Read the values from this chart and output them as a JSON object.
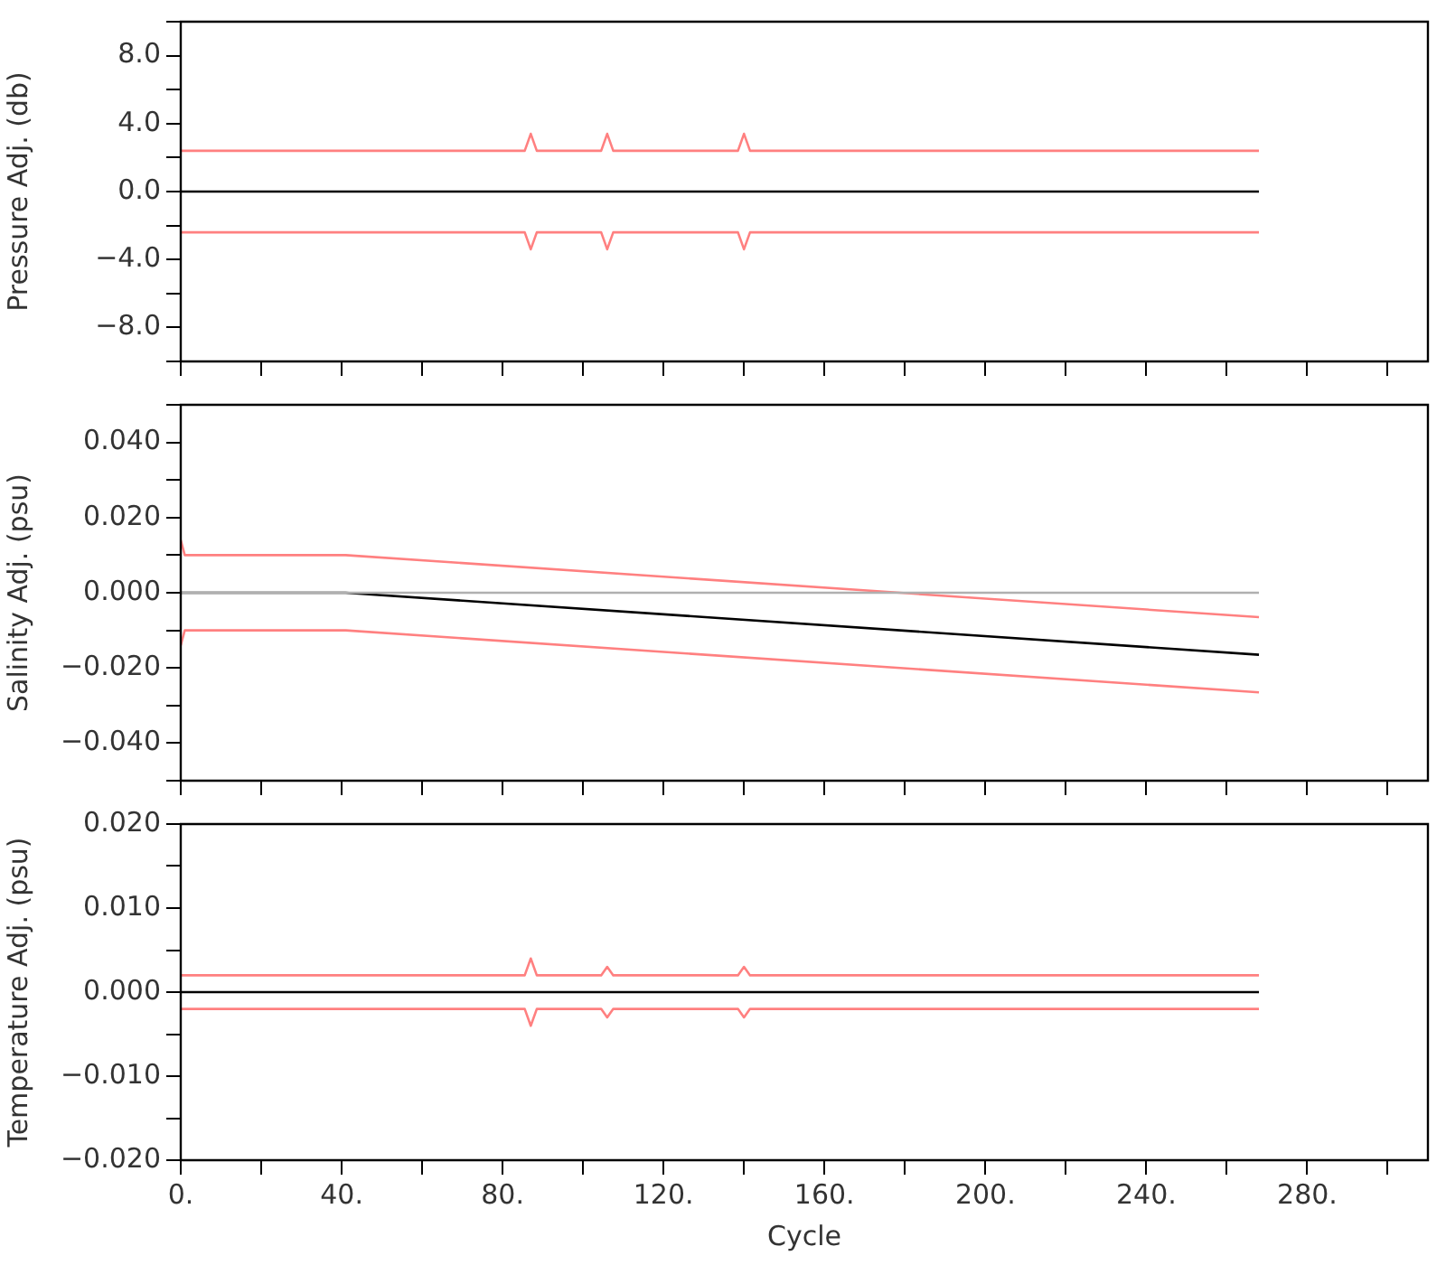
{
  "chart_data": [
    {
      "type": "line",
      "ylabel": "Pressure Adj. (db)",
      "xlim": [
        0,
        310
      ],
      "ylim": [
        -10,
        10
      ],
      "tick_labels": "y",
      "legend": false,
      "marker": "none",
      "line_style": "solid",
      "grid": false,
      "xticks": [
        {
          "value": 0,
          "label": null
        },
        {
          "value": 20,
          "label": null
        },
        {
          "value": 40,
          "label": null
        },
        {
          "value": 60,
          "label": null
        },
        {
          "value": 80,
          "label": null
        },
        {
          "value": 100,
          "label": null
        },
        {
          "value": 120,
          "label": null
        },
        {
          "value": 140,
          "label": null
        },
        {
          "value": 160,
          "label": null
        },
        {
          "value": 180,
          "label": null
        },
        {
          "value": 200,
          "label": null
        },
        {
          "value": 220,
          "label": null
        },
        {
          "value": 240,
          "label": null
        },
        {
          "value": 260,
          "label": null
        },
        {
          "value": 280,
          "label": null
        },
        {
          "value": 300,
          "label": null
        }
      ],
      "yticks": [
        {
          "value": -10,
          "label": null
        },
        {
          "value": -8,
          "label": "−8.0"
        },
        {
          "value": -6,
          "label": null
        },
        {
          "value": -4,
          "label": "−4.0"
        },
        {
          "value": -2,
          "label": null
        },
        {
          "value": 0,
          "label": "0.0"
        },
        {
          "value": 2,
          "label": null
        },
        {
          "value": 4,
          "label": "4.0"
        },
        {
          "value": 6,
          "label": null
        },
        {
          "value": 8,
          "label": "8.0"
        },
        {
          "value": 10,
          "label": null
        }
      ],
      "series": [
        {
          "color": "#ff8080",
          "x": [
            0,
            85.5,
            87,
            88.5,
            104.5,
            106,
            107.5,
            138.5,
            140,
            141.5,
            268
          ],
          "values": [
            2.4,
            2.4,
            3.4,
            2.4,
            2.4,
            3.4,
            2.4,
            2.4,
            3.4,
            2.4,
            2.4
          ]
        },
        {
          "color": "#ff8080",
          "x": [
            0,
            85.5,
            87,
            88.5,
            104.5,
            106,
            107.5,
            138.5,
            140,
            141.5,
            268
          ],
          "values": [
            -2.4,
            -2.4,
            -3.4,
            -2.4,
            -2.4,
            -3.4,
            -2.4,
            -2.4,
            -3.4,
            -2.4,
            -2.4
          ]
        },
        {
          "color": "#000000",
          "x": [
            0,
            268
          ],
          "values": [
            0,
            0
          ]
        }
      ]
    },
    {
      "type": "line",
      "ylabel": "Salinity Adj. (psu)",
      "xlim": [
        0,
        310
      ],
      "ylim": [
        -0.05,
        0.05
      ],
      "tick_labels": "y",
      "legend": false,
      "marker": "none",
      "line_style": "solid",
      "grid": false,
      "xticks": [
        {
          "value": 0,
          "label": null
        },
        {
          "value": 20,
          "label": null
        },
        {
          "value": 40,
          "label": null
        },
        {
          "value": 60,
          "label": null
        },
        {
          "value": 80,
          "label": null
        },
        {
          "value": 100,
          "label": null
        },
        {
          "value": 120,
          "label": null
        },
        {
          "value": 140,
          "label": null
        },
        {
          "value": 160,
          "label": null
        },
        {
          "value": 180,
          "label": null
        },
        {
          "value": 200,
          "label": null
        },
        {
          "value": 220,
          "label": null
        },
        {
          "value": 240,
          "label": null
        },
        {
          "value": 260,
          "label": null
        },
        {
          "value": 280,
          "label": null
        },
        {
          "value": 300,
          "label": null
        }
      ],
      "yticks": [
        {
          "value": -0.05,
          "label": null
        },
        {
          "value": -0.04,
          "label": "−0.040"
        },
        {
          "value": -0.03,
          "label": null
        },
        {
          "value": -0.02,
          "label": "−0.020"
        },
        {
          "value": -0.01,
          "label": null
        },
        {
          "value": 0,
          "label": "0.000"
        },
        {
          "value": 0.01,
          "label": null
        },
        {
          "value": 0.02,
          "label": "0.020"
        },
        {
          "value": 0.03,
          "label": null
        },
        {
          "value": 0.04,
          "label": "0.040"
        },
        {
          "value": 0.05,
          "label": null
        }
      ],
      "series": [
        {
          "color": "#b0b0b0",
          "x": [
            0,
            268
          ],
          "values": [
            0,
            0
          ]
        },
        {
          "color": "#ff8080",
          "x": [
            0,
            1,
            41,
            268
          ],
          "values": [
            0.014,
            0.01,
            0.01,
            -0.0065
          ]
        },
        {
          "color": "#ff8080",
          "x": [
            0,
            1,
            41,
            268
          ],
          "values": [
            -0.014,
            -0.01,
            -0.01,
            -0.0265
          ]
        },
        {
          "color": "#000000",
          "x": [
            0,
            41,
            268
          ],
          "values": [
            0,
            0,
            -0.0165
          ]
        }
      ]
    },
    {
      "type": "line",
      "ylabel": "Temperature Adj. (psu)",
      "xlabel": "Cycle",
      "xlim": [
        0,
        310
      ],
      "ylim": [
        -0.02,
        0.02
      ],
      "legend": false,
      "marker": "none",
      "line_style": "solid",
      "grid": false,
      "xticks": [
        {
          "value": 0,
          "label": "0."
        },
        {
          "value": 20,
          "label": null
        },
        {
          "value": 40,
          "label": "40."
        },
        {
          "value": 60,
          "label": null
        },
        {
          "value": 80,
          "label": "80."
        },
        {
          "value": 100,
          "label": null
        },
        {
          "value": 120,
          "label": "120."
        },
        {
          "value": 140,
          "label": null
        },
        {
          "value": 160,
          "label": "160."
        },
        {
          "value": 180,
          "label": null
        },
        {
          "value": 200,
          "label": "200."
        },
        {
          "value": 220,
          "label": null
        },
        {
          "value": 240,
          "label": "240."
        },
        {
          "value": 260,
          "label": null
        },
        {
          "value": 280,
          "label": "280."
        },
        {
          "value": 300,
          "label": null
        }
      ],
      "yticks": [
        {
          "value": -0.02,
          "label": "−0.020"
        },
        {
          "value": -0.015,
          "label": null
        },
        {
          "value": -0.01,
          "label": "−0.010"
        },
        {
          "value": -0.005,
          "label": null
        },
        {
          "value": 0,
          "label": "0.000"
        },
        {
          "value": 0.005,
          "label": null
        },
        {
          "value": 0.01,
          "label": "0.010"
        },
        {
          "value": 0.015,
          "label": null
        },
        {
          "value": 0.02,
          "label": "0.020"
        }
      ],
      "series": [
        {
          "color": "#ff8080",
          "x": [
            0,
            85.5,
            87,
            88.5,
            104.5,
            106,
            107.5,
            138.5,
            140,
            141.5,
            268
          ],
          "values": [
            0.002,
            0.002,
            0.004,
            0.002,
            0.002,
            0.003,
            0.002,
            0.002,
            0.003,
            0.002,
            0.002
          ]
        },
        {
          "color": "#ff8080",
          "x": [
            0,
            85.5,
            87,
            88.5,
            104.5,
            106,
            107.5,
            138.5,
            140,
            141.5,
            268
          ],
          "values": [
            -0.002,
            -0.002,
            -0.004,
            -0.002,
            -0.002,
            -0.003,
            -0.002,
            -0.002,
            -0.003,
            -0.002,
            -0.002
          ]
        },
        {
          "color": "#000000",
          "x": [
            0,
            268
          ],
          "values": [
            0,
            0
          ]
        }
      ]
    }
  ]
}
